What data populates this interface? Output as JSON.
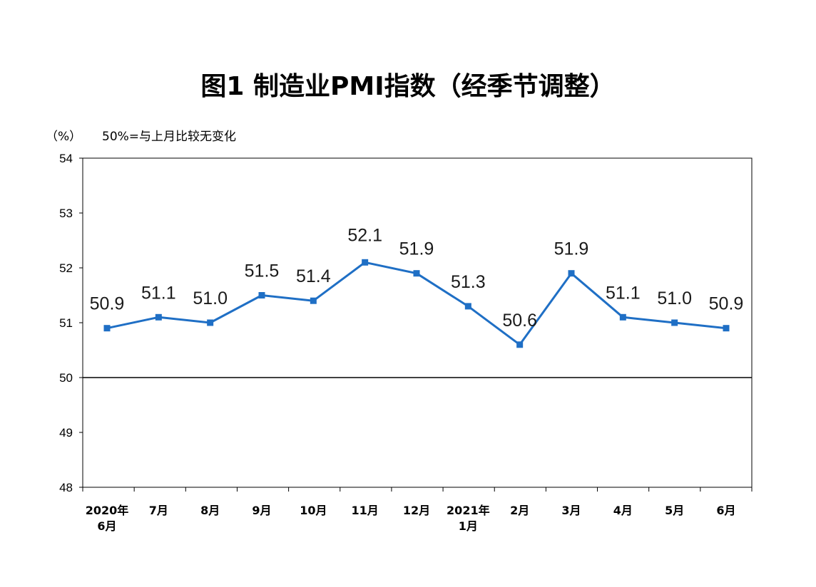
{
  "chart_data": {
    "type": "line",
    "title": "图1 制造业PMI指数（经季节调整）",
    "unit_label": "（%）",
    "note": "50%=与上月比较无变化",
    "categories": [
      [
        "2020年",
        "6月"
      ],
      [
        "7月"
      ],
      [
        "8月"
      ],
      [
        "9月"
      ],
      [
        "10月"
      ],
      [
        "11月"
      ],
      [
        "12月"
      ],
      [
        "2021年",
        "1月"
      ],
      [
        "2月"
      ],
      [
        "3月"
      ],
      [
        "4月"
      ],
      [
        "5月"
      ],
      [
        "6月"
      ]
    ],
    "series": [
      {
        "values": [
          50.9,
          51.1,
          51.0,
          51.5,
          51.4,
          52.1,
          51.9,
          51.3,
          50.6,
          51.9,
          51.1,
          51.0,
          50.9
        ],
        "color": "#1f6fc5"
      }
    ],
    "data_labels": [
      "50.9",
      "51.1",
      "51.0",
      "51.5",
      "51.4",
      "52.1",
      "51.9",
      "51.3",
      "50.6",
      "51.9",
      "51.1",
      "51.0",
      "50.9"
    ],
    "ylim": [
      48,
      54
    ],
    "yticks": [
      "54",
      "53",
      "52",
      "51",
      "50",
      "49",
      "48"
    ],
    "reference_line": 50,
    "grid": false,
    "legend": "none"
  }
}
